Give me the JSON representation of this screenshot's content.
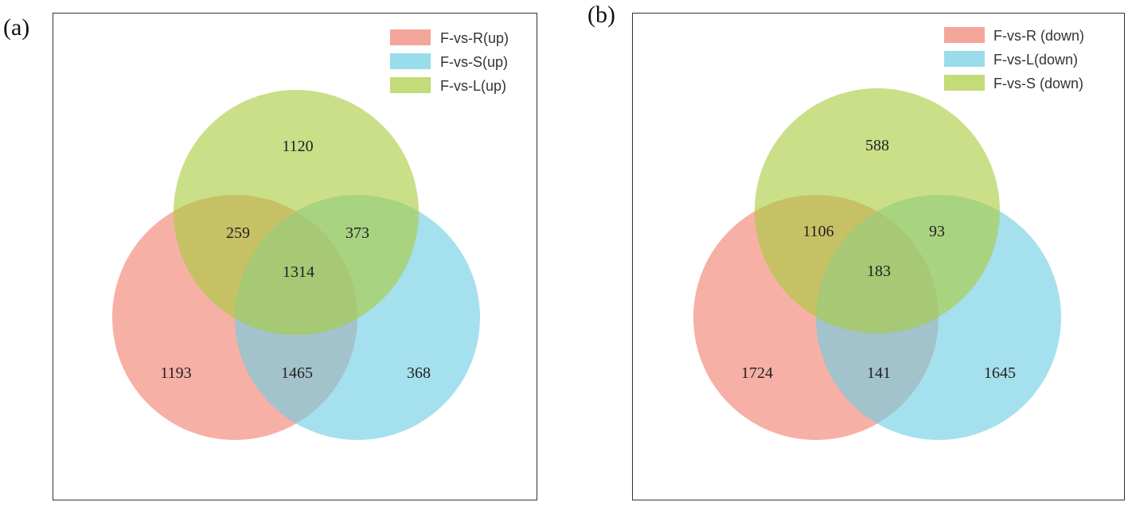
{
  "panels": [
    {
      "label": "(a)",
      "legend": [
        {
          "name": "F-vs-R(up)",
          "color": "#f28b82"
        },
        {
          "name": "F-vs-S(up)",
          "color": "#7fd3e6"
        },
        {
          "name": "F-vs-L(up)",
          "color": "#b5d45a"
        }
      ],
      "regions": {
        "top_only": "1120",
        "top_left": "259",
        "top_right": "373",
        "center": "1314",
        "left_only": "1193",
        "bottom_mid": "1465",
        "right_only": "368"
      }
    },
    {
      "label": "(b)",
      "legend": [
        {
          "name": "F-vs-R (down)",
          "color": "#f28b82"
        },
        {
          "name": "F-vs-L(down)",
          "color": "#7fd3e6"
        },
        {
          "name": "F-vs-S (down)",
          "color": "#b5d45a"
        }
      ],
      "regions": {
        "top_only": "588",
        "top_left": "1106",
        "top_right": "93",
        "center": "183",
        "left_only": "1724",
        "bottom_mid": "141",
        "right_only": "1645"
      }
    }
  ]
}
